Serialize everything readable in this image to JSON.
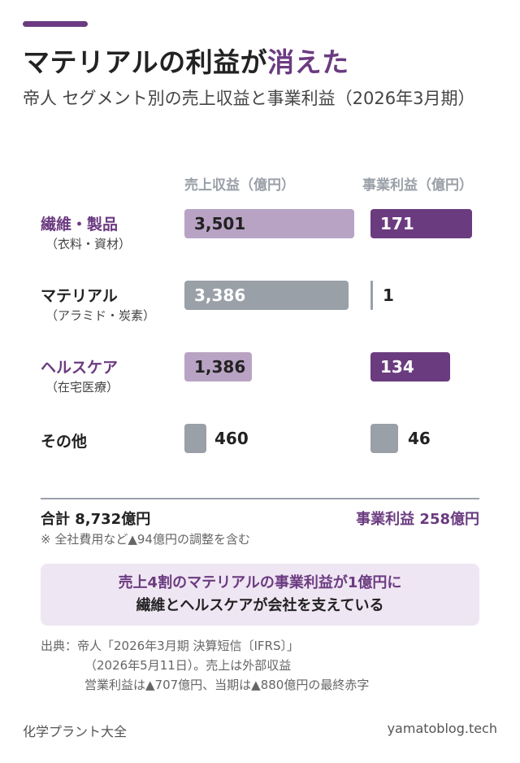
{
  "title": {
    "prefix": "マテリアルの利益が",
    "highlight": "消えた"
  },
  "subtitle": "帝人 セグメント別の売上収益と事業利益（2026年3月期）",
  "colors": {
    "accent": "#6b3b80",
    "revenue_accent": "#b9a3c4",
    "gray": "#9aa0a8",
    "dark_text": "#222222"
  },
  "chart_data": {
    "type": "bar",
    "columns": [
      "売上収益（億円）",
      "事業利益（億円）"
    ],
    "categories": [
      {
        "name": "繊維・製品",
        "sub": "（衣料・資材）",
        "highlight": true
      },
      {
        "name": "マテリアル",
        "sub": "（アラミド・炭素）",
        "highlight": false
      },
      {
        "name": "ヘルスケア",
        "sub": "（在宅医療）",
        "highlight": true
      },
      {
        "name": "その他",
        "sub": "",
        "highlight": false
      }
    ],
    "series": [
      {
        "values": [
          3501,
          3386,
          1386,
          460
        ]
      },
      {
        "values": [
          171,
          1,
          134,
          46
        ]
      }
    ]
  },
  "summary": {
    "total": "合計 8,732億円",
    "profit_total": "事業利益 258億円",
    "note": "※ 全社費用など▲94億円の調整を含む"
  },
  "callout": {
    "line1": "売上4割のマテリアルの事業利益が1億円に",
    "line2": "繊維とヘルスケアが会社を支えている"
  },
  "source": {
    "line1": "出典：帝人「2026年3月期 決算短信〔IFRS〕」",
    "line2": "（2026年5月11日）。売上は外部収益",
    "line3": "営業利益は▲707億円、当期は▲880億円の最終赤字"
  },
  "footer": {
    "left": "化学プラント大全",
    "right": "yamatoblog.tech"
  }
}
